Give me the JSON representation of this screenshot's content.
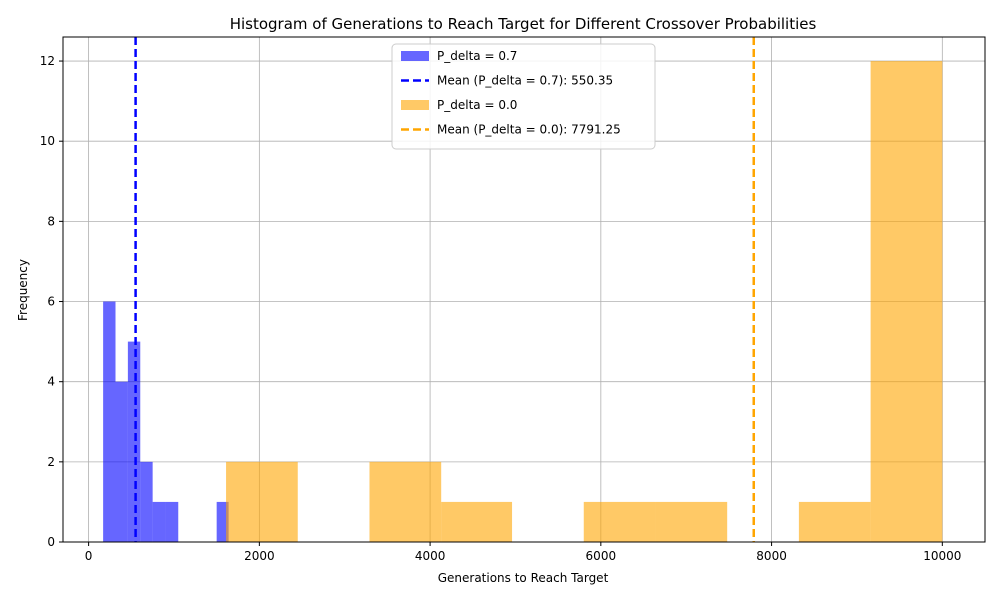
{
  "chart_data": {
    "type": "histogram",
    "title": "Histogram of Generations to Reach Target for Different Crossover Probabilities",
    "xlabel": "Generations to Reach Target",
    "ylabel": "Frequency",
    "xlim": [
      -300,
      10500
    ],
    "ylim": [
      0,
      12.6
    ],
    "xticks": [
      0,
      2000,
      4000,
      6000,
      8000,
      10000
    ],
    "yticks": [
      0,
      2,
      4,
      6,
      8,
      10,
      12
    ],
    "grid": true,
    "legend_position": "top-center",
    "series": [
      {
        "name": "P_delta = 0.7",
        "color": "#0000ff",
        "alpha": 0.6,
        "bins": [
          {
            "start": 170,
            "end": 315,
            "count": 6
          },
          {
            "start": 315,
            "end": 460,
            "count": 4
          },
          {
            "start": 460,
            "end": 605,
            "count": 5
          },
          {
            "start": 605,
            "end": 750,
            "count": 2
          },
          {
            "start": 750,
            "end": 900,
            "count": 1
          },
          {
            "start": 900,
            "end": 1050,
            "count": 1
          },
          {
            "start": 1500,
            "end": 1640,
            "count": 1
          }
        ]
      },
      {
        "name": "P_delta = 0.0",
        "color": "#ffa500",
        "alpha": 0.6,
        "bins": [
          {
            "start": 1610,
            "end": 2450,
            "count": 2
          },
          {
            "start": 3290,
            "end": 4130,
            "count": 2
          },
          {
            "start": 4130,
            "end": 4960,
            "count": 1
          },
          {
            "start": 5800,
            "end": 6640,
            "count": 1
          },
          {
            "start": 6640,
            "end": 7480,
            "count": 1
          },
          {
            "start": 8320,
            "end": 9160,
            "count": 1
          },
          {
            "start": 9160,
            "end": 10000,
            "count": 12
          }
        ]
      }
    ],
    "mean_lines": [
      {
        "name": "Mean (P_delta = 0.7): 550.35",
        "value": 550.35,
        "color": "#0000ff"
      },
      {
        "name": "Mean (P_delta = 0.0): 7791.25",
        "value": 7791.25,
        "color": "#ffa500"
      }
    ],
    "legend": [
      {
        "label": "P_delta = 0.7",
        "kind": "patch",
        "color": "#0000ff"
      },
      {
        "label": "Mean (P_delta = 0.7): 550.35",
        "kind": "dashed-line",
        "color": "#0000ff"
      },
      {
        "label": "P_delta = 0.0",
        "kind": "patch",
        "color": "#ffa500"
      },
      {
        "label": "Mean (P_delta = 0.0): 7791.25",
        "kind": "dashed-line",
        "color": "#ffa500"
      }
    ]
  }
}
